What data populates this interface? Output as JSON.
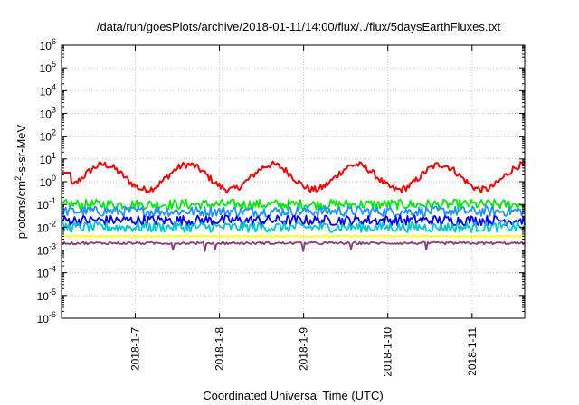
{
  "chart_data": {
    "type": "line",
    "title": "/data/run/goesPlots/archive/2018-01-11/14:00/flux/../flux/5daysEarthFluxes.txt",
    "xlabel": "Coordinated Universal Time (UTC)",
    "ylabel_parts": [
      "protons/cm",
      "2",
      "-s-sr-MeV"
    ],
    "y_scale": "log",
    "ylim_exp": [
      -6,
      6
    ],
    "y_ticks": [
      {
        "base": "10",
        "exp": "6"
      },
      {
        "base": "10",
        "exp": "5"
      },
      {
        "base": "10",
        "exp": "4"
      },
      {
        "base": "10",
        "exp": "3"
      },
      {
        "base": "10",
        "exp": "2"
      },
      {
        "base": "10",
        "exp": "1"
      },
      {
        "base": "10",
        "exp": "0"
      },
      {
        "base": "10",
        "exp": "-1"
      },
      {
        "base": "10",
        "exp": "-2"
      },
      {
        "base": "10",
        "exp": "-3"
      },
      {
        "base": "10",
        "exp": "-4"
      },
      {
        "base": "10",
        "exp": "-5"
      },
      {
        "base": "10",
        "exp": "-6"
      }
    ],
    "x_range": [
      "2018-01-06 03:00",
      "2018-01-11 15:00"
    ],
    "x_ticks": [
      "2018-1-7",
      "2018-1-8",
      "2018-1-9",
      "2018-1-10",
      "2018-1-11"
    ],
    "grid": true,
    "legend": "none",
    "series": [
      {
        "color": "#ff0000",
        "approx_level": 1.0,
        "note": "diurnal rise to ~5-8 each day"
      },
      {
        "color": "#00ee00",
        "approx_level": 0.1
      },
      {
        "color": "#1e90ff",
        "approx_level": 0.05
      },
      {
        "color": "#0000ff",
        "approx_level": 0.02
      },
      {
        "color": "#00c8c8",
        "approx_level": 0.01
      },
      {
        "color": "#ffff00",
        "approx_level": 0.004
      },
      {
        "color": "#8b3a7a",
        "approx_level": 0.002
      }
    ]
  }
}
